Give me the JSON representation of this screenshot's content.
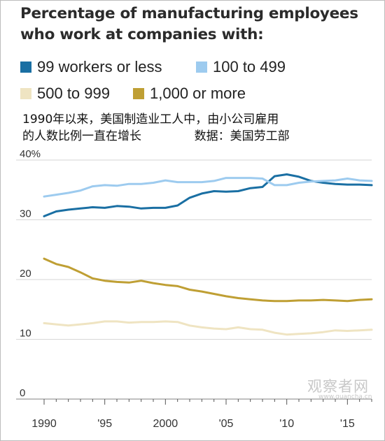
{
  "title_line1": "Percentage of manufacturing employees",
  "title_line2": "who work at companies with:",
  "note_text": "1990年以来，美国制造业工人中，由小公司雇用\n的人数比例一直在增长              数据：美国劳工部",
  "watermark": "观察者网",
  "watermark_sub": "www.guancha.cn",
  "legend": [
    {
      "label": "99 workers or less",
      "color": "#1a6fa3"
    },
    {
      "label": "100 to 499",
      "color": "#9dcbef"
    },
    {
      "label": "500 to 999",
      "color": "#efe4c2"
    },
    {
      "label": "1,000 or more",
      "color": "#bf9f34"
    }
  ],
  "chart_data": {
    "type": "line",
    "title": "Percentage of manufacturing employees who work at companies with:",
    "ylim": [
      0,
      40
    ],
    "xlim": [
      1990,
      2017
    ],
    "yticks": [
      0,
      10,
      20,
      30,
      40
    ],
    "ytick_labels": [
      "0",
      "10",
      "20",
      "30",
      "40%"
    ],
    "xticks": [
      1990,
      1995,
      2000,
      2005,
      2010,
      2015
    ],
    "xtick_labels": [
      "1990",
      "'95",
      "2000",
      "'05",
      "'10",
      "'15"
    ],
    "grid": true,
    "legend_position": "top",
    "x": [
      1990,
      1991,
      1992,
      1993,
      1994,
      1995,
      1996,
      1997,
      1998,
      1999,
      2000,
      2001,
      2002,
      2003,
      2004,
      2005,
      2006,
      2007,
      2008,
      2009,
      2010,
      2011,
      2012,
      2013,
      2014,
      2015,
      2016,
      2017
    ],
    "series": [
      {
        "name": "99 workers or less",
        "color": "#1a6fa3",
        "values": [
          30.6,
          31.4,
          31.7,
          31.9,
          32.1,
          32.0,
          32.3,
          32.2,
          31.9,
          32.0,
          32.0,
          32.4,
          33.7,
          34.4,
          34.8,
          34.7,
          34.8,
          35.3,
          35.5,
          37.3,
          37.6,
          37.2,
          36.5,
          36.2,
          36.0,
          35.9,
          35.9,
          35.8
        ]
      },
      {
        "name": "100 to 499",
        "color": "#9dcbef",
        "values": [
          33.9,
          34.2,
          34.5,
          34.9,
          35.6,
          35.8,
          35.7,
          36.0,
          36.0,
          36.2,
          36.6,
          36.3,
          36.3,
          36.3,
          36.5,
          37.0,
          37.0,
          37.0,
          36.9,
          35.8,
          35.8,
          36.2,
          36.4,
          36.5,
          36.6,
          36.9,
          36.6,
          36.5
        ]
      },
      {
        "name": "500 to 999",
        "color": "#efe4c2",
        "values": [
          12.7,
          12.5,
          12.3,
          12.5,
          12.7,
          13.0,
          13.0,
          12.8,
          12.9,
          12.9,
          13.0,
          12.9,
          12.3,
          12.0,
          11.8,
          11.7,
          12.0,
          11.7,
          11.6,
          11.1,
          10.8,
          10.9,
          11.0,
          11.2,
          11.5,
          11.4,
          11.5,
          11.6
        ]
      },
      {
        "name": "1,000 or more",
        "color": "#bf9f34",
        "values": [
          23.5,
          22.6,
          22.1,
          21.2,
          20.2,
          19.8,
          19.6,
          19.5,
          19.8,
          19.4,
          19.1,
          18.9,
          18.3,
          18.0,
          17.6,
          17.2,
          16.9,
          16.7,
          16.5,
          16.4,
          16.4,
          16.5,
          16.5,
          16.6,
          16.5,
          16.4,
          16.6,
          16.7
        ]
      }
    ]
  }
}
